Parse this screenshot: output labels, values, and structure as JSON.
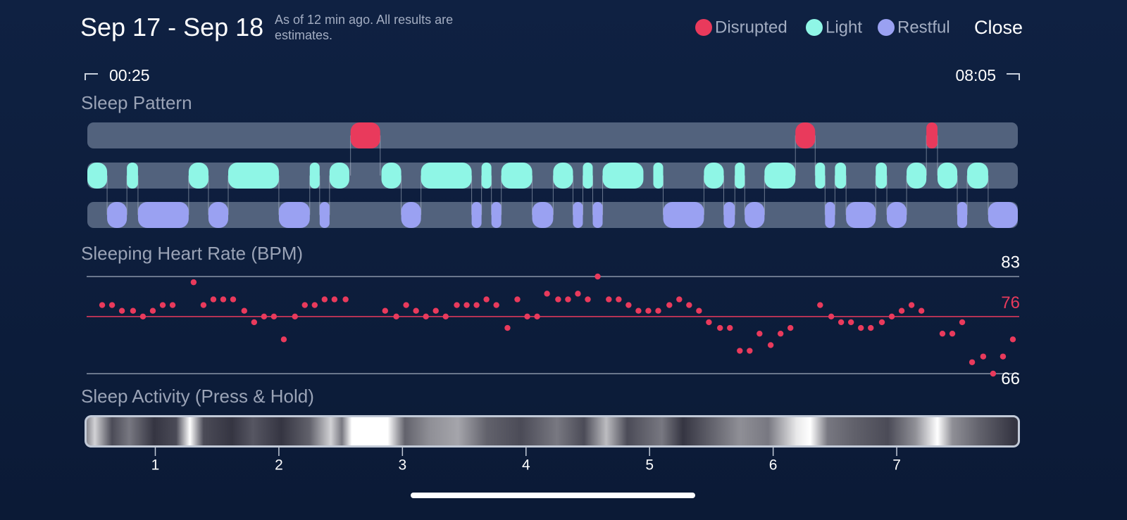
{
  "header": {
    "title": "Sep 17 - Sep 18",
    "subtitle": "As of 12 min ago. All results are estimates.",
    "close_button": "Close"
  },
  "range": {
    "start": "00:25",
    "end": "08:05"
  },
  "chart_data": [
    {
      "type": "timeline",
      "title": "Sleep Pattern",
      "xlim": [
        0.45,
        7.98
      ],
      "series": [
        {
          "name": "Disrupted",
          "color": "#e93a5c",
          "values": [
            [
              2.58,
              2.82
            ],
            [
              6.18,
              6.34
            ],
            [
              7.24,
              7.33
            ]
          ]
        },
        {
          "name": "Light",
          "color": "#8ff6e6",
          "values": [
            [
              0.45,
              0.61
            ],
            [
              0.77,
              0.86
            ],
            [
              1.27,
              1.43
            ],
            [
              1.59,
              2.0
            ],
            [
              2.25,
              2.33
            ],
            [
              2.41,
              2.57
            ],
            [
              2.83,
              2.99
            ],
            [
              3.15,
              3.56
            ],
            [
              3.64,
              3.72
            ],
            [
              3.8,
              4.05
            ],
            [
              4.22,
              4.38
            ],
            [
              4.46,
              4.54
            ],
            [
              4.62,
              4.95
            ],
            [
              5.03,
              5.11
            ],
            [
              5.44,
              5.6
            ],
            [
              5.69,
              5.77
            ],
            [
              5.93,
              6.18
            ],
            [
              6.34,
              6.42
            ],
            [
              6.5,
              6.59
            ],
            [
              6.83,
              6.92
            ],
            [
              7.08,
              7.24
            ],
            [
              7.33,
              7.49
            ],
            [
              7.57,
              7.74
            ]
          ]
        },
        {
          "name": "Restful",
          "color": "#9aa1f2",
          "values": [
            [
              0.61,
              0.77
            ],
            [
              0.86,
              1.27
            ],
            [
              1.43,
              1.59
            ],
            [
              2.0,
              2.25
            ],
            [
              2.33,
              2.41
            ],
            [
              2.99,
              3.15
            ],
            [
              3.56,
              3.64
            ],
            [
              3.72,
              3.8
            ],
            [
              4.05,
              4.22
            ],
            [
              4.38,
              4.46
            ],
            [
              4.54,
              4.62
            ],
            [
              5.11,
              5.44
            ],
            [
              5.6,
              5.69
            ],
            [
              5.77,
              5.93
            ],
            [
              6.42,
              6.5
            ],
            [
              6.59,
              6.83
            ],
            [
              6.92,
              7.08
            ],
            [
              7.49,
              7.57
            ],
            [
              7.74,
              7.98
            ]
          ]
        }
      ]
    },
    {
      "type": "scatter",
      "title": "Sleeping Heart Rate (BPM)",
      "color": "#e93a5c",
      "xlim": [
        0.45,
        7.98
      ],
      "ylim": [
        66,
        83
      ],
      "yticks": [
        66,
        83
      ],
      "reference_line": {
        "value": 76,
        "color": "#e93a5c"
      },
      "x": [
        0.57,
        0.65,
        0.73,
        0.82,
        0.9,
        0.98,
        1.06,
        1.14,
        1.31,
        1.39,
        1.47,
        1.55,
        1.63,
        1.72,
        1.8,
        1.88,
        1.96,
        2.04,
        2.13,
        2.21,
        2.29,
        2.37,
        2.45,
        2.54,
        2.86,
        2.95,
        3.03,
        3.11,
        3.19,
        3.27,
        3.35,
        3.44,
        3.52,
        3.6,
        3.68,
        3.76,
        3.85,
        3.93,
        4.01,
        4.09,
        4.17,
        4.26,
        4.34,
        4.42,
        4.5,
        4.58,
        4.67,
        4.75,
        4.83,
        4.91,
        4.99,
        5.07,
        5.16,
        5.24,
        5.32,
        5.4,
        5.48,
        5.57,
        5.65,
        5.73,
        5.81,
        5.89,
        5.98,
        6.06,
        6.14,
        6.38,
        6.47,
        6.55,
        6.63,
        6.71,
        6.79,
        6.88,
        6.96,
        7.04,
        7.12,
        7.2,
        7.37,
        7.45,
        7.53,
        7.61,
        7.7,
        7.78,
        7.86,
        7.94
      ],
      "values": [
        78,
        78,
        77,
        77,
        76,
        77,
        78,
        78,
        82,
        78,
        79,
        79,
        79,
        77,
        75,
        76,
        76,
        72,
        76,
        78,
        78,
        79,
        79,
        79,
        77,
        76,
        78,
        77,
        76,
        77,
        76,
        78,
        78,
        78,
        79,
        78,
        74,
        79,
        76,
        76,
        80,
        79,
        79,
        80,
        79,
        83,
        79,
        79,
        78,
        77,
        77,
        77,
        78,
        79,
        78,
        77,
        75,
        74,
        74,
        70,
        70,
        73,
        71,
        73,
        74,
        78,
        76,
        75,
        75,
        74,
        74,
        75,
        76,
        77,
        78,
        77,
        73,
        73,
        75,
        68,
        69,
        66,
        69,
        72
      ]
    },
    {
      "type": "heatmap",
      "title": "Sleep Activity (Press & Hold)",
      "xlim": [
        0.45,
        7.98
      ],
      "xticks": [
        1,
        2,
        3,
        4,
        5,
        6,
        7
      ],
      "x": [
        0.45,
        0.51,
        0.65,
        0.79,
        0.99,
        1.17,
        1.28,
        1.39,
        1.62,
        1.79,
        2.02,
        2.25,
        2.42,
        2.51,
        2.59,
        2.88,
        3.02,
        3.22,
        3.45,
        3.68,
        3.96,
        4.25,
        4.47,
        4.65,
        4.82,
        5.1,
        5.27,
        5.5,
        5.73,
        5.96,
        6.19,
        6.3,
        6.44,
        6.64,
        6.93,
        7.15,
        7.33,
        7.45,
        7.67,
        7.95
      ],
      "values": [
        0.5,
        0.8,
        0.2,
        0.4,
        0.1,
        0.2,
        1.0,
        0.2,
        0.1,
        0.25,
        0.1,
        0.3,
        0.8,
        0.4,
        1.0,
        1.0,
        0.3,
        0.5,
        0.6,
        0.3,
        0.2,
        0.4,
        0.2,
        0.7,
        0.2,
        0.4,
        0.1,
        0.3,
        0.5,
        0.4,
        0.9,
        1.0,
        0.4,
        0.3,
        0.2,
        0.5,
        1.0,
        0.5,
        0.3,
        0.1
      ]
    }
  ]
}
